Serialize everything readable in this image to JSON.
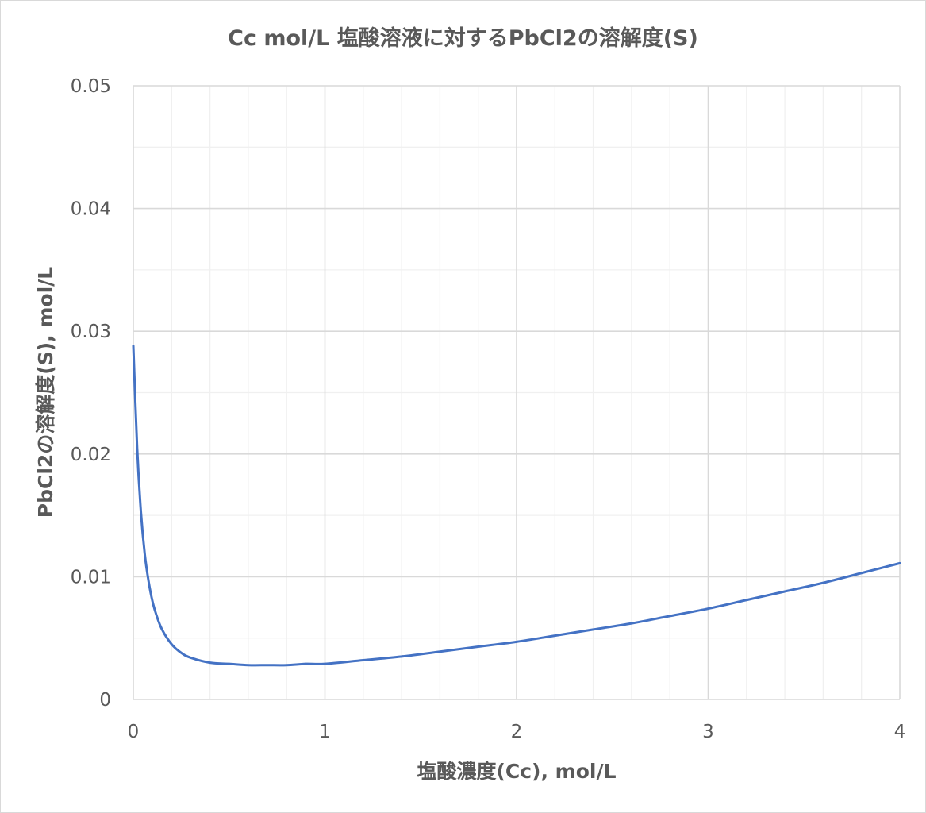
{
  "chart_data": {
    "type": "line",
    "title": "Cc mol/L 塩酸溶液に対するPbCl2の溶解度(S)",
    "xlabel": "塩酸濃度(Cc), mol/L",
    "ylabel": "PbCl2の溶解度(S), mol/L",
    "xlim": [
      0,
      4
    ],
    "ylim": [
      0,
      0.05
    ],
    "x_ticks": [
      0,
      1,
      2,
      3,
      4
    ],
    "y_ticks": [
      0,
      0.01,
      0.02,
      0.03,
      0.04,
      0.05
    ],
    "x_tick_labels": [
      "0",
      "1",
      "2",
      "3",
      "4"
    ],
    "y_tick_labels": [
      "0",
      "0.01",
      "0.02",
      "0.03",
      "0.04",
      "0.05"
    ],
    "x_minor_step": 0.2,
    "y_minor_step": 0.005,
    "grid": true,
    "legend": "none",
    "series": [
      {
        "color": "#4472c4",
        "x": [
          0.0,
          0.02,
          0.04,
          0.06,
          0.08,
          0.1,
          0.12,
          0.15,
          0.2,
          0.25,
          0.3,
          0.4,
          0.5,
          0.6,
          0.7,
          0.8,
          0.9,
          1.0,
          1.2,
          1.4,
          1.6,
          1.8,
          2.0,
          2.2,
          2.4,
          2.6,
          2.8,
          3.0,
          3.2,
          3.4,
          3.6,
          3.8,
          4.0
        ],
        "y": [
          0.0288,
          0.0205,
          0.0152,
          0.0118,
          0.0096,
          0.008,
          0.0069,
          0.0057,
          0.0045,
          0.0038,
          0.0034,
          0.003,
          0.0029,
          0.0028,
          0.0028,
          0.0028,
          0.0029,
          0.0029,
          0.0032,
          0.0035,
          0.0039,
          0.0043,
          0.0047,
          0.0052,
          0.0057,
          0.0062,
          0.0068,
          0.0074,
          0.0081,
          0.0088,
          0.0095,
          0.0103,
          0.0111
        ]
      }
    ]
  }
}
